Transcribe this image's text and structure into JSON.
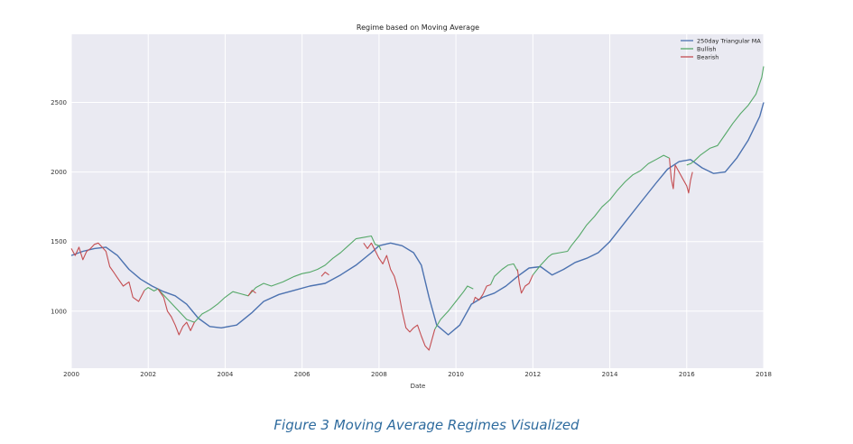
{
  "chart_data": {
    "type": "line",
    "title": "Regime based on Moving Average",
    "xlabel": "Date",
    "ylabel": "",
    "xlim": [
      2000,
      2018
    ],
    "ylim": [
      590,
      2990
    ],
    "x_ticks": [
      2000,
      2002,
      2004,
      2006,
      2008,
      2010,
      2012,
      2014,
      2016,
      2018
    ],
    "y_ticks": [
      1000,
      1500,
      2000,
      2500
    ],
    "grid": true,
    "legend_position": "top-right",
    "colors": {
      "ma": "#4c72b0",
      "bullish": "#55a868",
      "bearish": "#c44e52",
      "plot_bg": "#eaeaf2",
      "grid": "#ffffff"
    },
    "series": [
      {
        "name": "250day Triangular MA",
        "color": "#4c72b0",
        "x": [
          2000.0,
          2000.3,
          2000.6,
          2000.9,
          2001.2,
          2001.5,
          2001.8,
          2002.1,
          2002.4,
          2002.7,
          2003.0,
          2003.3,
          2003.6,
          2003.9,
          2004.3,
          2004.7,
          2005.0,
          2005.4,
          2005.8,
          2006.2,
          2006.6,
          2007.0,
          2007.4,
          2007.8,
          2008.0,
          2008.3,
          2008.6,
          2008.9,
          2009.1,
          2009.3,
          2009.5,
          2009.8,
          2010.1,
          2010.4,
          2010.7,
          2011.0,
          2011.3,
          2011.6,
          2011.9,
          2012.2,
          2012.5,
          2012.8,
          2013.1,
          2013.4,
          2013.7,
          2014.0,
          2014.4,
          2014.8,
          2015.2,
          2015.5,
          2015.8,
          2016.1,
          2016.4,
          2016.7,
          2017.0,
          2017.3,
          2017.6,
          2017.9,
          2018.0
        ],
        "values": [
          1400,
          1430,
          1450,
          1460,
          1400,
          1300,
          1230,
          1180,
          1140,
          1110,
          1050,
          950,
          890,
          880,
          900,
          990,
          1070,
          1120,
          1150,
          1180,
          1200,
          1260,
          1330,
          1420,
          1470,
          1490,
          1470,
          1420,
          1330,
          1100,
          900,
          830,
          900,
          1050,
          1100,
          1130,
          1180,
          1250,
          1310,
          1320,
          1260,
          1300,
          1350,
          1380,
          1420,
          1500,
          1640,
          1780,
          1920,
          2020,
          2075,
          2090,
          2030,
          1990,
          2000,
          2100,
          2230,
          2400,
          2500
        ]
      },
      {
        "name": "Bullish",
        "color": "#55a868",
        "x": [
          2001.9,
          2002.0,
          2002.15,
          2002.25,
          2003.0,
          2003.2,
          2003.4,
          2003.6,
          2003.8,
          2004.0,
          2004.2,
          2004.4,
          2004.6,
          2004.8,
          2005.0,
          2005.2,
          2005.5,
          2005.8,
          2006.0,
          2006.2,
          2006.4,
          2006.6,
          2006.8,
          2007.0,
          2007.2,
          2007.4,
          2007.6,
          2007.8,
          2007.9,
          2008.0,
          2008.05,
          null,
          2009.45,
          2009.6,
          2009.8,
          2010.0,
          2010.2,
          2010.3,
          2010.45,
          null,
          2010.9,
          2011.0,
          2011.2,
          2011.35,
          2011.5,
          2011.6,
          null,
          2012.0,
          2012.2,
          2012.4,
          2012.5,
          2012.7,
          2012.9,
          2013.0,
          2013.2,
          2013.4,
          2013.6,
          2013.8,
          2014.0,
          2014.2,
          2014.4,
          2014.6,
          2014.8,
          2015.0,
          2015.2,
          2015.4,
          2015.55,
          null,
          2016.0,
          2016.1,
          2016.2,
          2016.35,
          2016.6,
          2016.8,
          2017.0,
          2017.2,
          2017.4,
          2017.6,
          2017.8,
          2017.95,
          2018.0
        ],
        "values": [
          1150,
          1170,
          1145,
          1160,
          940,
          920,
          980,
          1010,
          1050,
          1100,
          1140,
          1125,
          1110,
          1170,
          1200,
          1180,
          1210,
          1250,
          1270,
          1280,
          1300,
          1330,
          1380,
          1420,
          1470,
          1520,
          1530,
          1540,
          1480,
          1470,
          1440,
          null,
          870,
          940,
          1000,
          1070,
          1140,
          1180,
          1160,
          null,
          1190,
          1250,
          1300,
          1330,
          1340,
          1290,
          null,
          1260,
          1330,
          1390,
          1410,
          1420,
          1430,
          1470,
          1540,
          1620,
          1680,
          1750,
          1800,
          1870,
          1930,
          1980,
          2010,
          2060,
          2090,
          2120,
          2100,
          null,
          2050,
          2060,
          2080,
          2120,
          2170,
          2190,
          2270,
          2350,
          2420,
          2480,
          2560,
          2680,
          2760
        ]
      },
      {
        "name": "Bearish",
        "color": "#c44e52",
        "x": [
          2000.0,
          2000.1,
          2000.2,
          2000.3,
          2000.4,
          2000.5,
          2000.6,
          2000.7,
          2000.8,
          2000.9,
          2001.0,
          2001.1,
          2001.2,
          2001.35,
          2001.5,
          2001.6,
          2001.75,
          2001.9,
          null,
          2002.25,
          2002.4,
          2002.5,
          2002.6,
          2002.7,
          2002.8,
          2002.9,
          2003.0,
          2003.1,
          2003.2,
          null,
          2004.6,
          2004.7,
          2004.8,
          null,
          2006.5,
          2006.6,
          2006.7,
          null,
          2007.6,
          2007.7,
          2007.8,
          2008.0,
          2008.1,
          2008.2,
          2008.3,
          2008.4,
          2008.5,
          2008.6,
          2008.7,
          2008.8,
          2008.9,
          2009.0,
          2009.1,
          2009.2,
          2009.3,
          2009.45,
          null,
          2010.45,
          2010.5,
          2010.6,
          2010.7,
          2010.8,
          2010.9,
          null,
          2011.6,
          2011.65,
          2011.7,
          2011.8,
          2011.9,
          2012.0,
          null,
          2015.55,
          2015.6,
          2015.65,
          2015.7,
          2015.8,
          2015.9,
          2016.0,
          2016.05,
          2016.1,
          2016.15
        ],
        "values": [
          1450,
          1400,
          1460,
          1370,
          1430,
          1450,
          1480,
          1490,
          1460,
          1430,
          1320,
          1280,
          1240,
          1180,
          1210,
          1100,
          1070,
          1150,
          null,
          1160,
          1100,
          1000,
          960,
          900,
          830,
          890,
          920,
          860,
          920,
          null,
          1110,
          1150,
          1130,
          null,
          1250,
          1280,
          1260,
          null,
          1490,
          1450,
          1490,
          1380,
          1340,
          1400,
          1300,
          1250,
          1150,
          1000,
          880,
          850,
          880,
          900,
          820,
          750,
          720,
          870,
          null,
          1060,
          1100,
          1080,
          1120,
          1180,
          1190,
          null,
          1300,
          1200,
          1130,
          1180,
          1200,
          1260,
          null,
          2100,
          1950,
          1880,
          2050,
          2000,
          1950,
          1900,
          1850,
          1940,
          2000
        ]
      }
    ]
  },
  "caption": "Figure 3 Moving Average Regimes Visualized"
}
